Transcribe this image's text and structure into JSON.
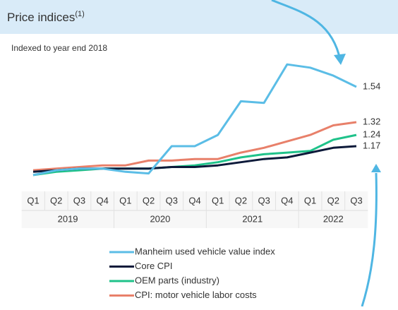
{
  "chart_data": {
    "type": "line",
    "title": "Price indices",
    "title_note": "(1)",
    "subtitle": "Indexed to year end 2018",
    "categories": [
      "Q1",
      "Q2",
      "Q3",
      "Q4",
      "Q1",
      "Q2",
      "Q3",
      "Q4",
      "Q1",
      "Q2",
      "Q3",
      "Q4",
      "Q1",
      "Q2",
      "Q3"
    ],
    "years": [
      "2019",
      "2020",
      "2021",
      "2022"
    ],
    "series": [
      {
        "name": "Manheim used vehicle value index",
        "color": "#5bbde6",
        "values": [
          0.99,
          1.02,
          1.03,
          1.03,
          1.01,
          1.0,
          1.17,
          1.17,
          1.24,
          1.45,
          1.44,
          1.68,
          1.66,
          1.61,
          1.54
        ]
      },
      {
        "name": "Core CPI",
        "color": "#0d1a3a",
        "values": [
          1.01,
          1.02,
          1.03,
          1.03,
          1.03,
          1.03,
          1.04,
          1.04,
          1.05,
          1.07,
          1.09,
          1.1,
          1.13,
          1.16,
          1.17
        ]
      },
      {
        "name": "OEM parts (industry)",
        "color": "#1fc28a",
        "values": [
          0.99,
          1.01,
          1.02,
          1.03,
          1.03,
          1.03,
          1.04,
          1.05,
          1.07,
          1.1,
          1.12,
          1.13,
          1.14,
          1.21,
          1.24
        ]
      },
      {
        "name": "CPI: motor vehicle labor costs",
        "color": "#e8806a",
        "values": [
          1.02,
          1.03,
          1.04,
          1.05,
          1.05,
          1.08,
          1.08,
          1.09,
          1.09,
          1.13,
          1.16,
          1.2,
          1.24,
          1.3,
          1.32
        ]
      }
    ]
  }
}
